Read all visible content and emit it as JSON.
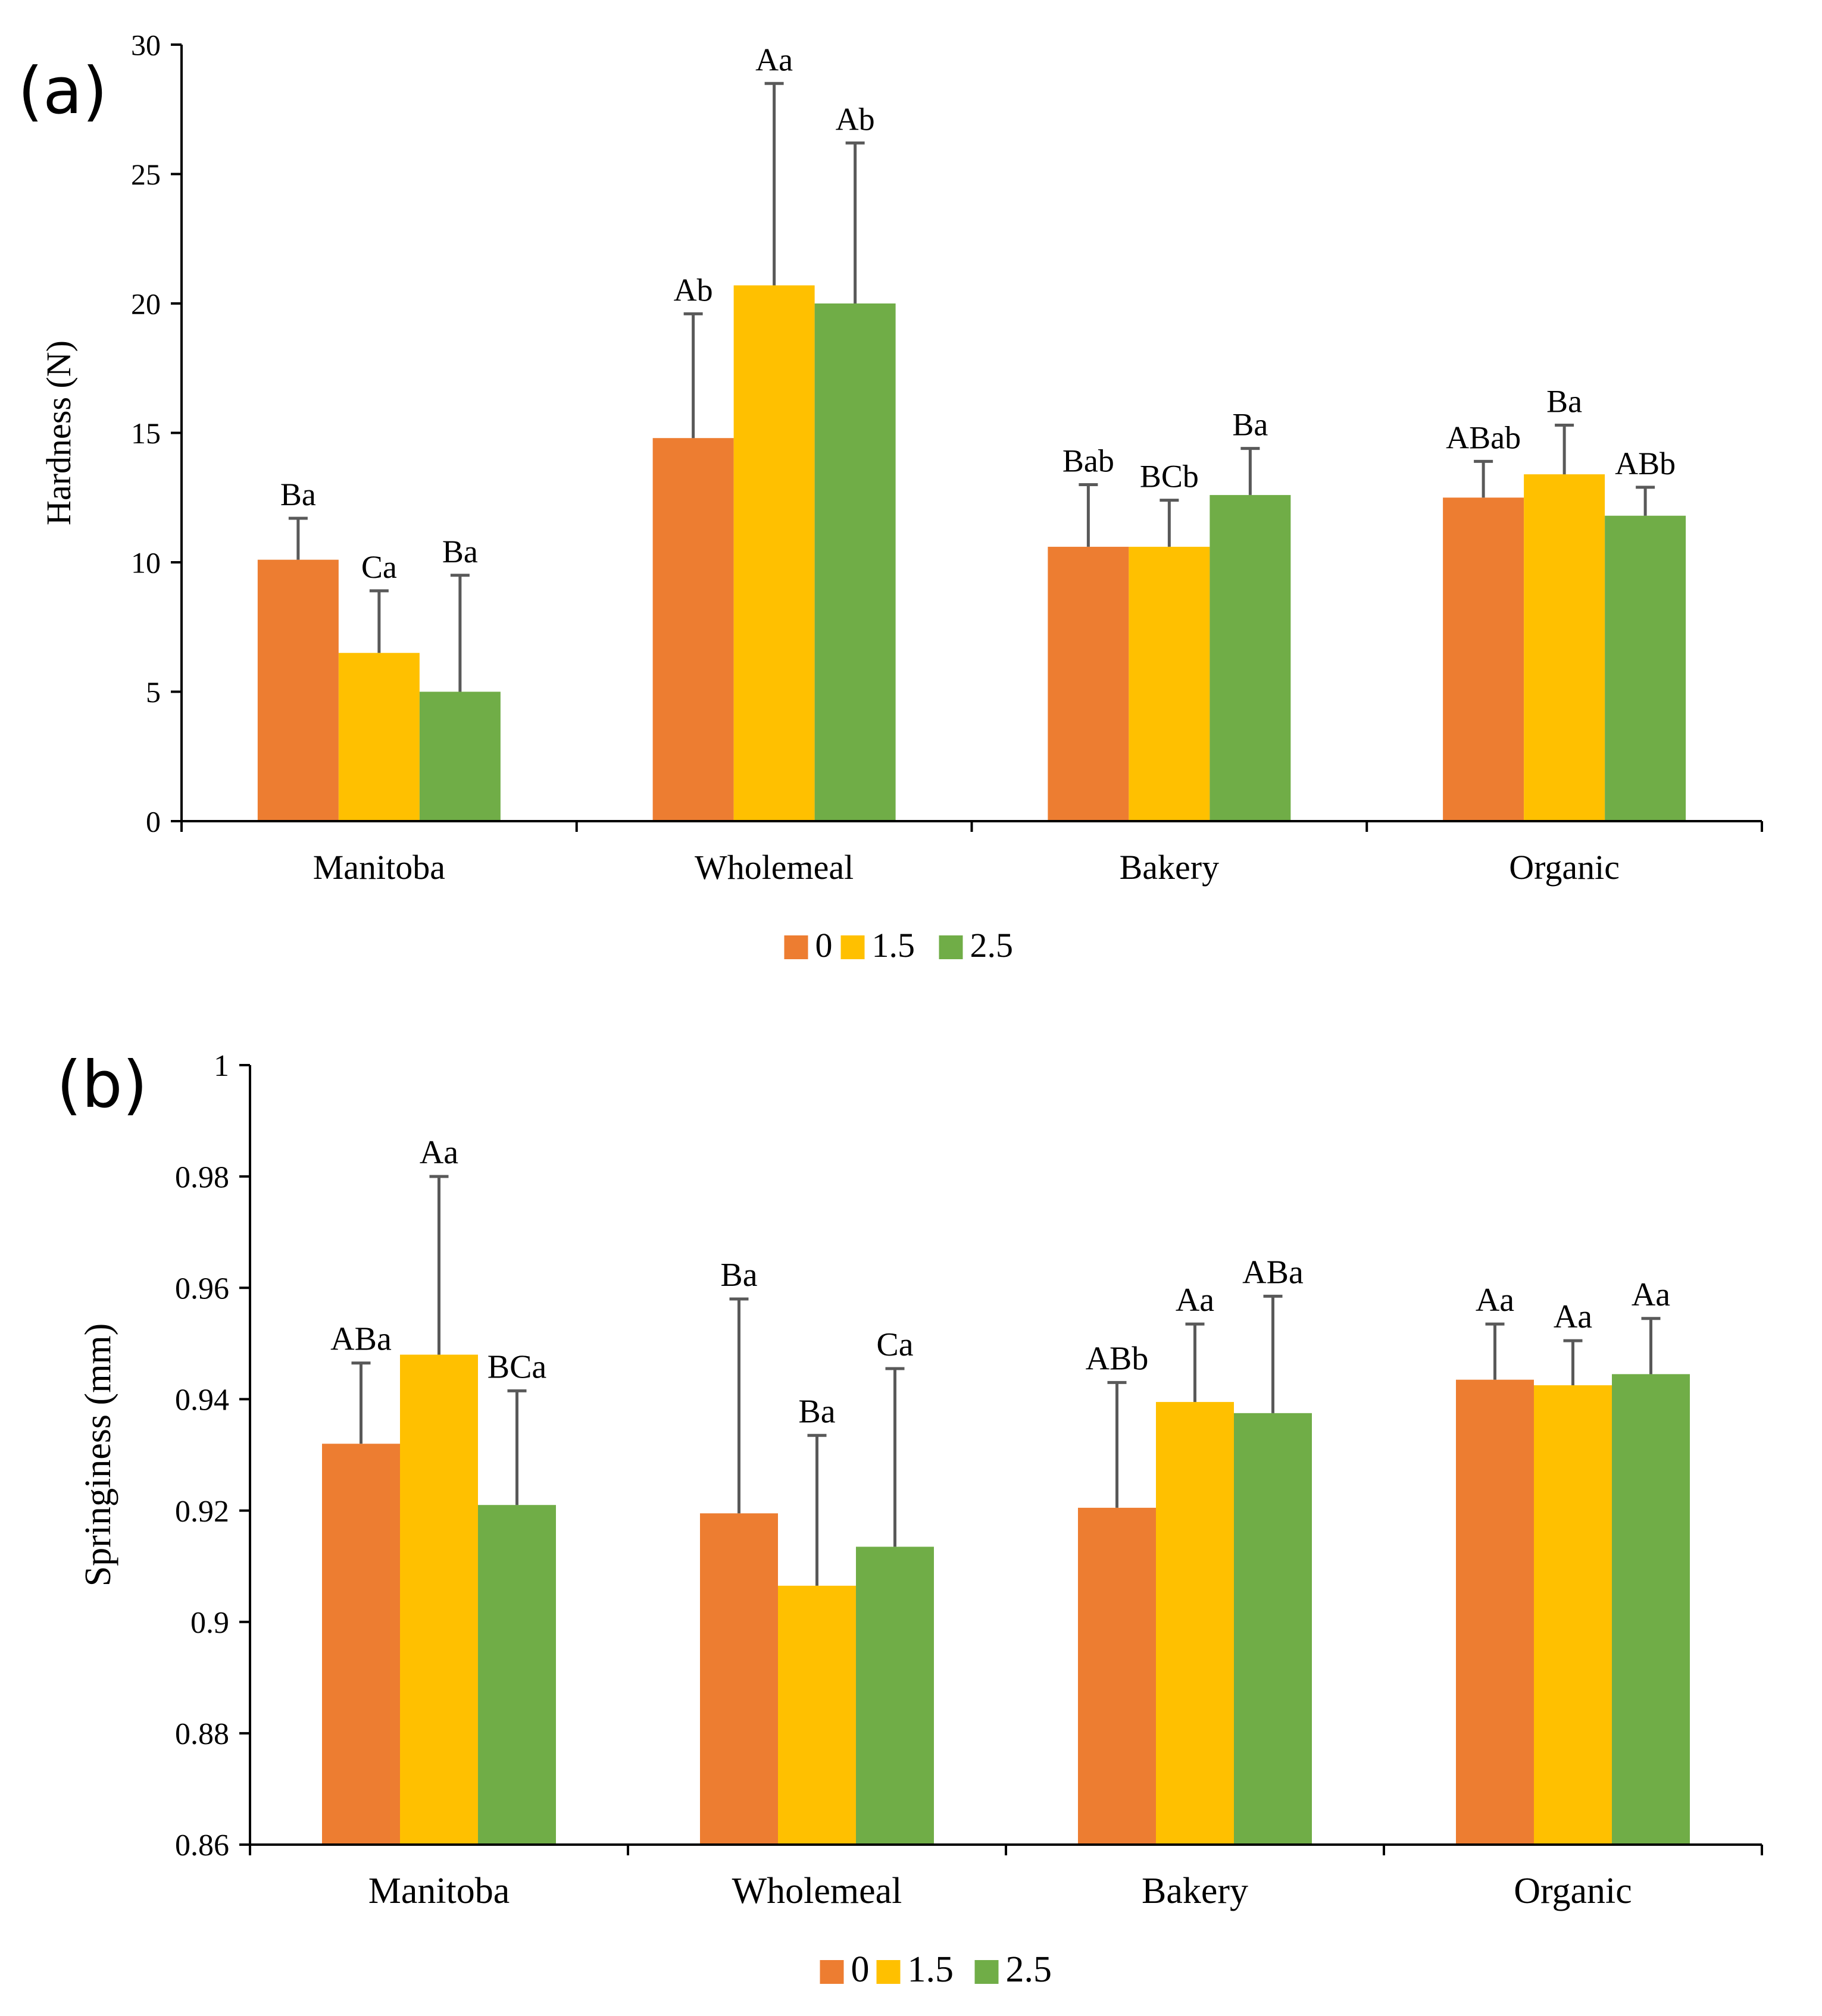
{
  "chart_data": [
    {
      "type": "bar",
      "panel_label": "(a)",
      "title": "",
      "xlabel": "",
      "ylabel": "Hardness (N)",
      "ylim": [
        0,
        30
      ],
      "yticks": [
        0,
        5,
        10,
        15,
        20,
        25,
        30
      ],
      "ytick_labels": [
        "0",
        "5",
        "10",
        "15",
        "20",
        "25",
        "30"
      ],
      "grid": false,
      "categories": [
        "Manitoba",
        "Wholemeal",
        "Bakery",
        "Organic"
      ],
      "series": [
        {
          "name": "0",
          "color": "#ED7D31",
          "values": [
            10.1,
            14.8,
            10.6,
            12.5
          ],
          "error_upper": [
            11.7,
            19.6,
            13.0,
            13.9
          ],
          "labels": [
            "Ba",
            "Ab",
            "Bab",
            "ABab"
          ]
        },
        {
          "name": "1.5",
          "color": "#FFC000",
          "values": [
            6.5,
            20.7,
            10.6,
            13.4
          ],
          "error_upper": [
            8.9,
            28.5,
            12.4,
            15.3
          ],
          "labels": [
            "Ca",
            "Aa",
            "BCb",
            "Ba"
          ]
        },
        {
          "name": "2.5",
          "color": "#70AD47",
          "values": [
            5.0,
            20.0,
            12.6,
            11.8
          ],
          "error_upper": [
            9.5,
            26.2,
            14.4,
            12.9
          ],
          "labels": [
            "Ba",
            "Ab",
            "Ba",
            "ABb"
          ]
        }
      ],
      "legend": [
        "0",
        "1.5",
        "2.5"
      ],
      "legend_position": "bottom"
    },
    {
      "type": "bar",
      "panel_label": "(b)",
      "title": "",
      "xlabel": "",
      "ylabel": "Springiness (mm)",
      "ylim": [
        0.86,
        1.0
      ],
      "yticks": [
        0.86,
        0.88,
        0.9,
        0.92,
        0.94,
        0.96,
        0.98,
        1.0
      ],
      "ytick_labels": [
        "0.86",
        "0.88",
        "0.9",
        "0.92",
        "0.94",
        "0.96",
        "0.98",
        "1"
      ],
      "grid": false,
      "categories": [
        "Manitoba",
        "Wholemeal",
        "Bakery",
        "Organic"
      ],
      "series": [
        {
          "name": "0",
          "color": "#ED7D31",
          "values": [
            0.932,
            0.9195,
            0.9205,
            0.9435
          ],
          "error_upper": [
            0.9465,
            0.958,
            0.943,
            0.9535
          ],
          "labels": [
            "ABa",
            "Ba",
            "ABb",
            "Aa"
          ]
        },
        {
          "name": "1.5",
          "color": "#FFC000",
          "values": [
            0.948,
            0.9065,
            0.9395,
            0.9425
          ],
          "error_upper": [
            0.98,
            0.9335,
            0.9535,
            0.9505
          ],
          "labels": [
            "Aa",
            "Ba",
            "Aa",
            "Aa"
          ]
        },
        {
          "name": "2.5",
          "color": "#70AD47",
          "values": [
            0.921,
            0.9135,
            0.9375,
            0.9445
          ],
          "error_upper": [
            0.9415,
            0.9455,
            0.9585,
            0.9545
          ],
          "labels": [
            "BCa",
            "Ca",
            "ABa",
            "Aa"
          ]
        }
      ],
      "legend": [
        "0",
        "1.5",
        "2.5"
      ],
      "legend_position": "bottom"
    }
  ]
}
